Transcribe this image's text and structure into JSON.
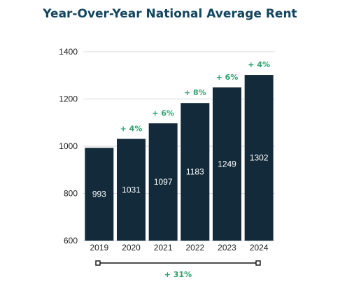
{
  "chart_data": {
    "type": "bar",
    "title": "Year-Over-Year National Average Rent",
    "categories": [
      "2019",
      "2020",
      "2021",
      "2022",
      "2023",
      "2024"
    ],
    "values": [
      993,
      1031,
      1097,
      1183,
      1249,
      1302
    ],
    "growth_labels": [
      "",
      "+ 4%",
      "+ 6%",
      "+ 8%",
      "+ 6%",
      "+ 4%"
    ],
    "overall_change_label": "+ 31%",
    "ylim": [
      600,
      1400
    ],
    "yticks": [
      600,
      800,
      1000,
      1200,
      1400
    ],
    "grid": "horizontal",
    "colors": {
      "bar": "#132a3a",
      "title": "#13465f",
      "growth": "#2aa36b",
      "grid": "#d9d9d9"
    }
  }
}
